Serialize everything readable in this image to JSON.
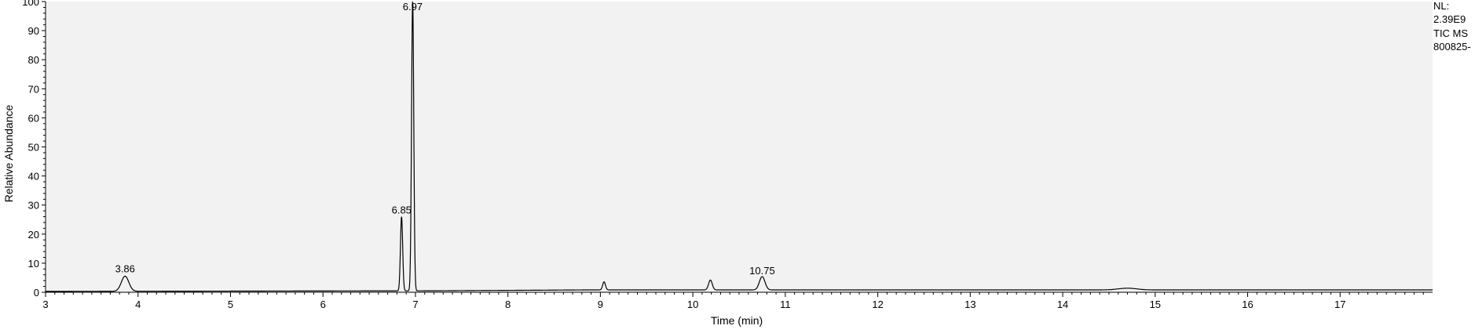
{
  "info": {
    "nl": "NL:",
    "nl_value": "2.39E9",
    "scan_filter": "TIC  MS",
    "file": "800825-"
  },
  "chart_data": {
    "type": "line",
    "title": "",
    "xlabel": "Time (min)",
    "ylabel": "Relative Abundance",
    "xlim": [
      3.0,
      18.0
    ],
    "ylim": [
      0,
      100
    ],
    "x_ticks": [
      3,
      4,
      5,
      6,
      7,
      8,
      9,
      10,
      11,
      12,
      13,
      14,
      15,
      16,
      17
    ],
    "y_ticks": [
      0,
      10,
      20,
      30,
      40,
      50,
      60,
      70,
      80,
      90,
      100
    ],
    "grid": false,
    "legend": "none",
    "colors": {
      "trace": "#000000",
      "plot_background": "#f2f2f2",
      "axis": "#000000"
    },
    "series": [
      {
        "peaks": [
          {
            "rt": 3.86,
            "height": 5.2,
            "width": 0.04,
            "label": "3.86"
          },
          {
            "rt": 6.85,
            "height": 25.5,
            "width": 0.012,
            "label": "6.85"
          },
          {
            "rt": 6.97,
            "height": 100,
            "width": 0.012,
            "label": "6.97"
          },
          {
            "rt": 9.04,
            "height": 2.8,
            "width": 0.015
          },
          {
            "rt": 10.19,
            "height": 3.4,
            "width": 0.02
          },
          {
            "rt": 10.75,
            "height": 4.6,
            "width": 0.03,
            "label": "10.75"
          },
          {
            "rt": 14.7,
            "height": 0.6,
            "width": 0.1
          }
        ],
        "baseline": [
          [
            3.0,
            0.3
          ],
          [
            7.2,
            0.5
          ],
          [
            8.8,
            0.8
          ],
          [
            18.0,
            0.8
          ]
        ]
      }
    ]
  }
}
